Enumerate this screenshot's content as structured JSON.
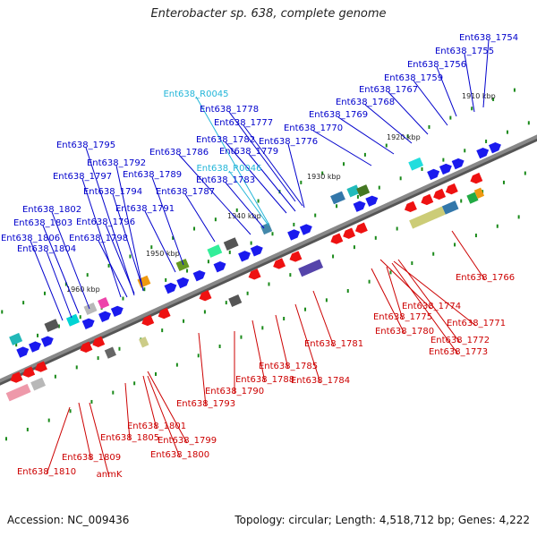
{
  "header": {
    "title": "Enterobacter sp. 638, complete genome"
  },
  "footer": {
    "accession": "Accession: NC_009436",
    "topology": "Topology: circular; Length: 4,518,712 bp; Genes: 4,222"
  },
  "colors": {
    "top_label": "#0000cc",
    "rna_label": "#22b5d8",
    "bottom_label": "#cc0000",
    "backbone": "#888888",
    "tick_mark": "#1a8a1a"
  },
  "scale": {
    "ticks": [
      "1910 kbp",
      "1920 kbp",
      "1930 kbp",
      "1940 kbp",
      "1950 kbp",
      "1960 kbp"
    ]
  },
  "top_labels": [
    "Ent638_1754",
    "Ent638_1755",
    "Ent638_1756",
    "Ent638_1759",
    "Ent638_1767",
    "Ent638_1768",
    "Ent638_1769",
    "Ent638_1770",
    "Ent638_R0045",
    "Ent638_1778",
    "Ent638_1777",
    "Ent638_1782",
    "Ent638_1776",
    "Ent638_1779",
    "Ent638_R0046",
    "Ent638_1786",
    "Ent638_1783",
    "Ent638_1795",
    "Ent638_1792",
    "Ent638_1797",
    "Ent638_1789",
    "Ent638_1794",
    "Ent638_1787",
    "Ent638_1802",
    "Ent638_1791",
    "Ent638_1803",
    "Ent638_1796",
    "Ent638_1806",
    "Ent638_1798",
    "Ent638_1804"
  ],
  "bottom_labels": [
    "Ent638_1766",
    "Ent638_1774",
    "Ent638_1771",
    "Ent638_1775",
    "Ent638_1780",
    "Ent638_1772",
    "Ent638_1773",
    "Ent638_1781",
    "Ent638_1785",
    "Ent638_1784",
    "Ent638_1788",
    "Ent638_1790",
    "Ent638_1793",
    "Ent638_1801",
    "Ent638_1805",
    "Ent638_1799",
    "Ent638_1800",
    "Ent638_1810",
    "Ent638_1809",
    "anmK"
  ]
}
